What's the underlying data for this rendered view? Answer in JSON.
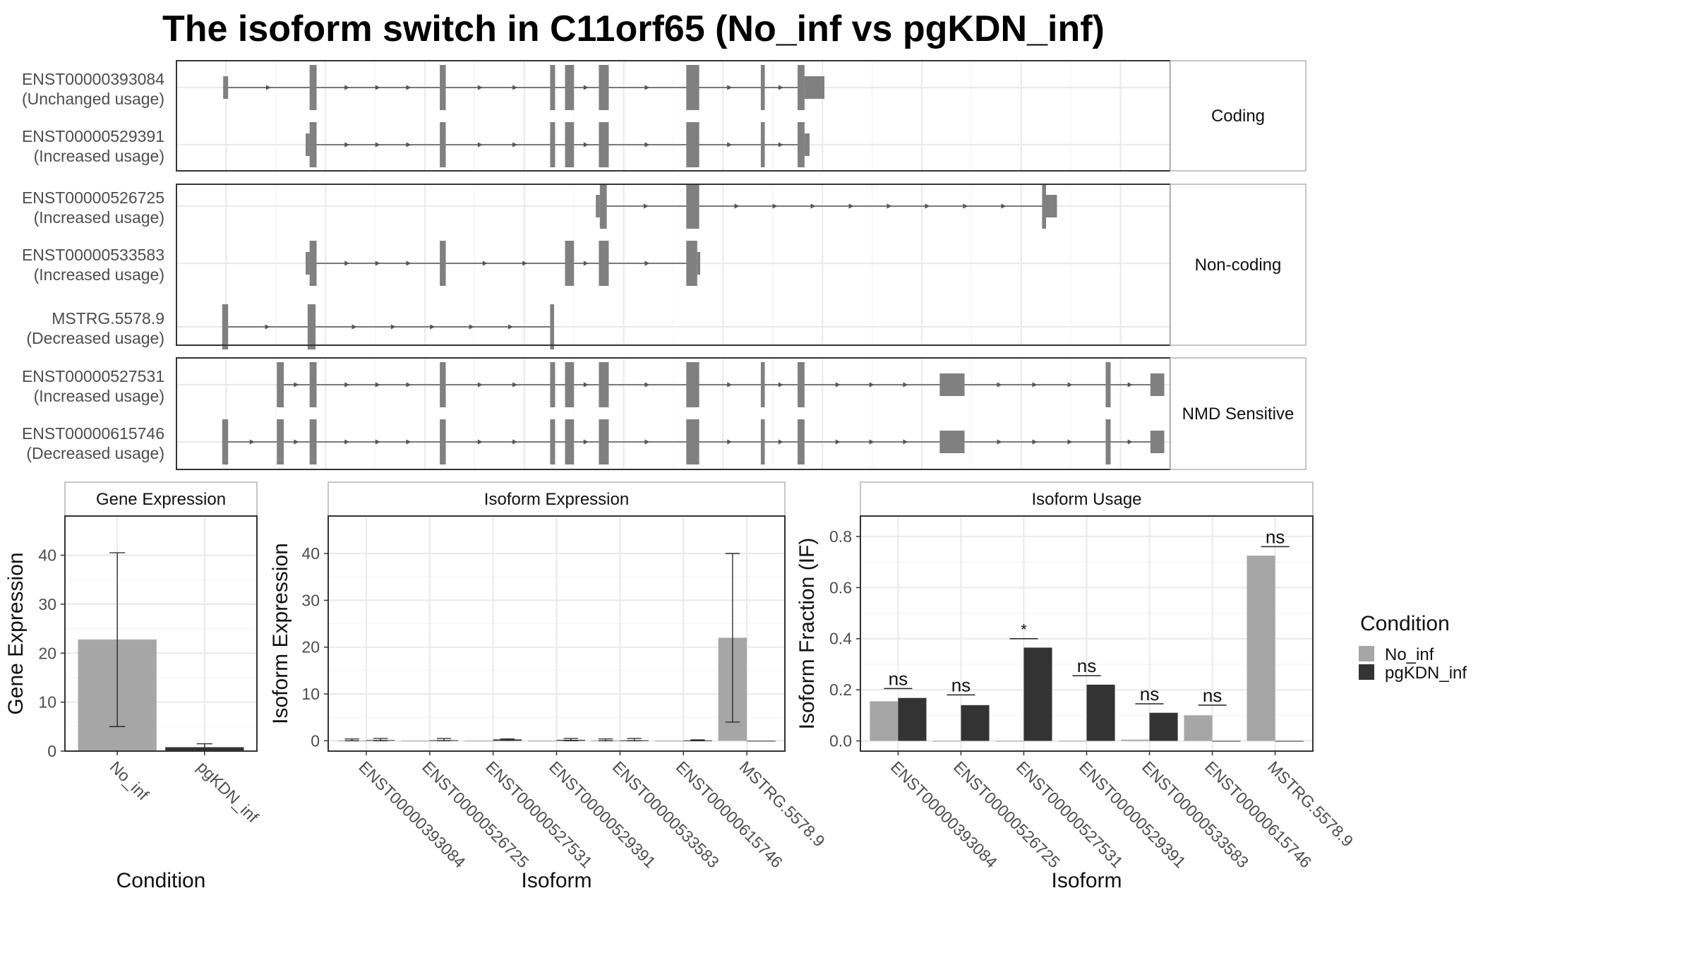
{
  "title": "The isoform switch in C11orf65 (No_inf vs pgKDN_inf)",
  "colors": {
    "no_inf": "#a6a6a6",
    "pgkdn_inf": "#333333",
    "exon": "#808080",
    "intron": "#555555",
    "grid": "#ebebeb",
    "panel_border": "#333333",
    "strip_border": "#b3b3b3",
    "strip_fill": "#ffffff",
    "text": "#111111",
    "axis_text": "#4d4d4d"
  },
  "structure": {
    "coord_range": [
      0,
      100
    ],
    "groups": [
      {
        "label": "Coding",
        "isoforms": [
          {
            "id": "ENST00000393084",
            "usage": "(Unchanged usage)",
            "exons": [
              [
                4.7,
                5.2,
                "s"
              ],
              [
                13.4,
                14.1,
                "t"
              ],
              [
                26.5,
                27.1,
                "t"
              ],
              [
                37.6,
                38.1,
                "t"
              ],
              [
                39.1,
                40.0,
                "t"
              ],
              [
                42.5,
                43.5,
                "t"
              ],
              [
                51.3,
                52.6,
                "t"
              ],
              [
                58.8,
                59.2,
                "t"
              ],
              [
                62.5,
                63.2,
                "t"
              ],
              [
                63.2,
                65.2,
                "s"
              ]
            ]
          },
          {
            "id": "ENST00000529391",
            "usage": "(Increased usage)",
            "exons": [
              [
                13.0,
                13.4,
                "s"
              ],
              [
                13.4,
                14.1,
                "t"
              ],
              [
                26.5,
                27.1,
                "t"
              ],
              [
                37.6,
                38.1,
                "t"
              ],
              [
                39.1,
                40.0,
                "t"
              ],
              [
                42.5,
                43.5,
                "t"
              ],
              [
                51.3,
                52.6,
                "t"
              ],
              [
                58.8,
                59.2,
                "t"
              ],
              [
                62.5,
                63.2,
                "t"
              ],
              [
                63.2,
                63.7,
                "s"
              ]
            ]
          }
        ]
      },
      {
        "label": "Non-coding",
        "isoforms": [
          {
            "id": "ENST00000526725",
            "usage": "(Increased usage)",
            "exons": [
              [
                42.2,
                42.6,
                "s"
              ],
              [
                42.6,
                43.3,
                "t"
              ],
              [
                51.3,
                52.6,
                "t"
              ],
              [
                87.1,
                87.5,
                "t"
              ],
              [
                87.5,
                88.6,
                "s"
              ]
            ]
          },
          {
            "id": "ENST00000533583",
            "usage": "(Increased usage)",
            "exons": [
              [
                13.0,
                13.4,
                "s"
              ],
              [
                13.4,
                14.1,
                "t"
              ],
              [
                26.5,
                27.1,
                "t"
              ],
              [
                39.1,
                40.0,
                "t"
              ],
              [
                42.5,
                43.5,
                "t"
              ],
              [
                51.3,
                52.4,
                "t"
              ],
              [
                52.4,
                52.7,
                "s"
              ]
            ]
          },
          {
            "id": "MSTRG.5578.9",
            "usage": "(Decreased usage)",
            "exons": [
              [
                4.6,
                5.2,
                "t"
              ],
              [
                13.2,
                14.0,
                "t"
              ],
              [
                37.6,
                38.0,
                "t"
              ]
            ]
          }
        ]
      },
      {
        "label": "NMD Sensitive",
        "isoforms": [
          {
            "id": "ENST00000527531",
            "usage": "(Increased usage)",
            "exons": [
              [
                10.1,
                10.8,
                "t"
              ],
              [
                13.4,
                14.1,
                "t"
              ],
              [
                26.5,
                27.1,
                "t"
              ],
              [
                37.6,
                38.1,
                "t"
              ],
              [
                39.1,
                40.0,
                "t"
              ],
              [
                42.5,
                43.5,
                "t"
              ],
              [
                51.3,
                52.6,
                "t"
              ],
              [
                58.8,
                59.2,
                "t"
              ],
              [
                62.5,
                63.2,
                "t"
              ],
              [
                76.8,
                79.3,
                "s"
              ],
              [
                93.5,
                94.0,
                "t"
              ],
              [
                98.0,
                99.4,
                "s"
              ]
            ]
          },
          {
            "id": "ENST00000615746",
            "usage": "(Decreased usage)",
            "exons": [
              [
                4.6,
                5.2,
                "t"
              ],
              [
                10.1,
                10.8,
                "t"
              ],
              [
                13.4,
                14.1,
                "t"
              ],
              [
                26.5,
                27.1,
                "t"
              ],
              [
                37.6,
                38.1,
                "t"
              ],
              [
                39.1,
                40.0,
                "t"
              ],
              [
                42.5,
                43.5,
                "t"
              ],
              [
                51.3,
                52.6,
                "t"
              ],
              [
                58.8,
                59.2,
                "t"
              ],
              [
                62.5,
                63.2,
                "t"
              ],
              [
                76.8,
                79.3,
                "s"
              ],
              [
                93.5,
                94.0,
                "t"
              ],
              [
                98.0,
                99.4,
                "s"
              ]
            ]
          }
        ]
      }
    ]
  },
  "chart_data": [
    {
      "type": "bar",
      "strip": "Gene Expression",
      "ylabel": "Gene Expression",
      "xlabel": "Condition",
      "categories": [
        "No_inf",
        "pgKDN_inf"
      ],
      "values": [
        22.8,
        0.8
      ],
      "error_low": [
        5.0,
        0.1
      ],
      "error_high": [
        40.5,
        1.5
      ],
      "ylim": [
        0,
        48
      ],
      "yticks": [
        0,
        10,
        20,
        30,
        40
      ],
      "grid": true
    },
    {
      "type": "bar",
      "strip": "Isoform Expression",
      "ylabel": "Isoform Expression",
      "xlabel": "Isoform",
      "categories": [
        "ENST00000393084",
        "ENST00000526725",
        "ENST00000527531",
        "ENST00000529391",
        "ENST00000533583",
        "ENST00000615746",
        "MSTRG.5578.9"
      ],
      "series": [
        {
          "name": "No_inf",
          "values": [
            0.05,
            0.0,
            0.0,
            0.0,
            0.05,
            0.0,
            22.0
          ],
          "error_low": [
            0.0,
            0.0,
            0.0,
            0.0,
            0.0,
            0.0,
            4.0
          ],
          "error_high": [
            0.4,
            0.0,
            0.0,
            0.0,
            0.4,
            0.0,
            40.0
          ]
        },
        {
          "name": "pgKDN_inf",
          "values": [
            0.15,
            0.12,
            0.3,
            0.2,
            0.1,
            0.08,
            0.0
          ],
          "error_low": [
            0.0,
            0.0,
            0.1,
            0.0,
            0.0,
            0.0,
            0.0
          ],
          "error_high": [
            0.5,
            0.5,
            0.4,
            0.5,
            0.5,
            0.2,
            0.0
          ]
        }
      ],
      "ylim": [
        -2.2,
        48
      ],
      "yticks": [
        0,
        10,
        20,
        30,
        40
      ],
      "grid": true
    },
    {
      "type": "bar",
      "strip": "Isoform Usage",
      "ylabel": "Isoform Fraction (IF)",
      "xlabel": "Isoform",
      "categories": [
        "ENST00000393084",
        "ENST00000526725",
        "ENST00000527531",
        "ENST00000529391",
        "ENST00000533583",
        "ENST00000615746",
        "MSTRG.5578.9"
      ],
      "series": [
        {
          "name": "No_inf",
          "values": [
            0.155,
            0.0,
            0.0,
            0.0,
            0.005,
            0.1,
            0.725
          ]
        },
        {
          "name": "pgKDN_inf",
          "values": [
            0.168,
            0.14,
            0.365,
            0.22,
            0.11,
            0.0,
            0.0
          ]
        }
      ],
      "significance": [
        "ns",
        "ns",
        "*",
        "ns",
        "ns",
        "ns",
        "ns"
      ],
      "sig_level": [
        0.205,
        0.18,
        0.4,
        0.255,
        0.145,
        0.14,
        0.76
      ],
      "ylim": [
        -0.04,
        0.88
      ],
      "yticks": [
        0.0,
        0.2,
        0.4,
        0.6,
        0.8
      ],
      "grid": true
    }
  ],
  "legend": {
    "title": "Condition",
    "items": [
      {
        "label": "No_inf",
        "color": "#a6a6a6"
      },
      {
        "label": "pgKDN_inf",
        "color": "#333333"
      }
    ]
  }
}
